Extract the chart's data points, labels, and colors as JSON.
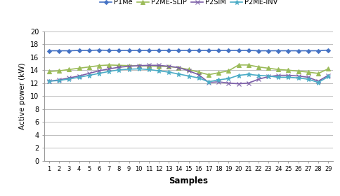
{
  "title": "",
  "xlabel": "Samples",
  "ylabel": "Active power (kW)",
  "xlim": [
    0.5,
    29.5
  ],
  "ylim": [
    0,
    20
  ],
  "yticks": [
    0,
    2,
    4,
    6,
    8,
    10,
    12,
    14,
    16,
    18,
    20
  ],
  "xticks": [
    1,
    2,
    3,
    4,
    5,
    6,
    7,
    8,
    9,
    10,
    11,
    12,
    13,
    14,
    15,
    16,
    17,
    18,
    19,
    20,
    21,
    22,
    23,
    24,
    25,
    26,
    27,
    28,
    29
  ],
  "series": {
    "P1Me": {
      "color": "#4472C4",
      "marker": "D",
      "markersize": 3.0,
      "linewidth": 1.2,
      "values": [
        17.0,
        17.0,
        17.0,
        17.05,
        17.05,
        17.1,
        17.05,
        17.05,
        17.05,
        17.05,
        17.05,
        17.05,
        17.05,
        17.05,
        17.05,
        17.05,
        17.05,
        17.05,
        17.05,
        17.05,
        17.05,
        17.0,
        17.0,
        17.0,
        17.0,
        17.0,
        17.0,
        17.0,
        17.1
      ]
    },
    "P2ME-SLIP": {
      "color": "#9BBB59",
      "marker": "^",
      "markersize": 5,
      "linewidth": 1.2,
      "values": [
        13.8,
        13.9,
        14.1,
        14.3,
        14.5,
        14.7,
        14.8,
        14.75,
        14.7,
        14.65,
        14.65,
        14.6,
        14.55,
        14.4,
        14.1,
        13.7,
        13.3,
        13.6,
        13.9,
        14.8,
        14.8,
        14.5,
        14.3,
        14.1,
        14.0,
        13.85,
        13.7,
        13.5,
        14.2
      ]
    },
    "P2SIM": {
      "color": "#7B5EA7",
      "marker": "x",
      "markersize": 5,
      "linewidth": 1.2,
      "values": [
        12.3,
        12.5,
        12.8,
        13.1,
        13.5,
        13.9,
        14.2,
        14.45,
        14.6,
        14.7,
        14.75,
        14.75,
        14.6,
        14.4,
        13.9,
        13.3,
        12.1,
        12.2,
        12.0,
        11.9,
        12.0,
        12.6,
        13.0,
        13.2,
        13.2,
        13.1,
        12.9,
        12.3,
        13.2
      ]
    },
    "P2ME-INV": {
      "color": "#4BACC6",
      "marker": "*",
      "markersize": 5,
      "linewidth": 1.2,
      "values": [
        12.3,
        12.4,
        12.65,
        12.9,
        13.2,
        13.5,
        13.8,
        14.05,
        14.15,
        14.2,
        14.1,
        13.9,
        13.7,
        13.4,
        13.1,
        12.8,
        12.2,
        12.5,
        12.7,
        13.2,
        13.35,
        13.2,
        13.1,
        12.9,
        12.9,
        12.8,
        12.6,
        12.1,
        13.0
      ]
    }
  },
  "legend_order": [
    "P1Me",
    "P2ME-SLIP",
    "P2SIM",
    "P2ME-INV"
  ],
  "background_color": "#FFFFFF",
  "grid_color": "#BFBFBF"
}
